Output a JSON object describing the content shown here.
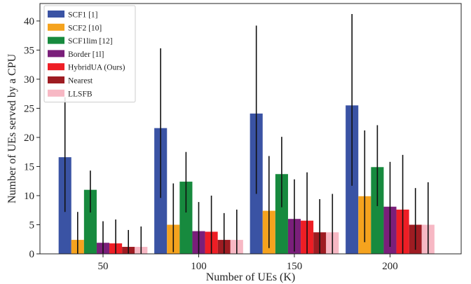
{
  "chart_data": {
    "type": "bar",
    "title": "",
    "xlabel": "Number of UEs (K)",
    "ylabel": "Number of UEs served by a CPU",
    "categories": [
      "50",
      "100",
      "150",
      "200"
    ],
    "ylim": [
      0,
      43
    ],
    "yticks": [
      0,
      5,
      10,
      15,
      20,
      25,
      30,
      35,
      40
    ],
    "grid": false,
    "legend_position": "top-left",
    "error_bars": true,
    "series": [
      {
        "name": "SCF1 [1]",
        "color": "#3a53a4",
        "values": [
          16.6,
          21.6,
          24.1,
          25.5
        ],
        "err_low": [
          7.2,
          9.6,
          10.3,
          11.7
        ],
        "err_high": [
          26.9,
          35.3,
          39.2,
          41.2
        ]
      },
      {
        "name": "SCF2 [10]",
        "color": "#f5a31e",
        "values": [
          2.4,
          5.0,
          7.4,
          9.9
        ],
        "err_low": [
          0.0,
          0.3,
          1.0,
          2.0
        ],
        "err_high": [
          7.2,
          12.1,
          16.8,
          21.2
        ]
      },
      {
        "name": "SCF1lim [12]",
        "color": "#178a3e",
        "values": [
          11.0,
          12.4,
          13.7,
          14.9
        ],
        "err_low": [
          7.1,
          7.1,
          8.0,
          8.2
        ],
        "err_high": [
          14.3,
          17.5,
          20.1,
          22.1
        ]
      },
      {
        "name": "Border [1l]",
        "color": "#7a1f7a",
        "values": [
          1.9,
          3.9,
          6.0,
          8.1
        ],
        "err_low": [
          0.0,
          0.0,
          0.4,
          1.2
        ],
        "err_high": [
          5.6,
          8.9,
          12.8,
          15.8
        ]
      },
      {
        "name": "HybridUA (Ours)",
        "color": "#ee1e25",
        "values": [
          1.8,
          3.8,
          5.7,
          7.6
        ],
        "err_low": [
          0.0,
          0.0,
          0.0,
          0.0
        ],
        "err_high": [
          5.9,
          10.0,
          14.0,
          17.0
        ]
      },
      {
        "name": "Nearest",
        "color": "#9e1c22",
        "values": [
          1.2,
          2.4,
          3.7,
          5.0
        ],
        "err_low": [
          0.0,
          0.0,
          0.0,
          0.7
        ],
        "err_high": [
          4.1,
          7.0,
          9.4,
          11.3
        ]
      },
      {
        "name": "LLSFB",
        "color": "#f7b8c4",
        "values": [
          1.2,
          2.4,
          3.7,
          5.0
        ],
        "err_low": [
          0.0,
          0.0,
          0.0,
          0.0
        ],
        "err_high": [
          4.7,
          7.6,
          10.3,
          12.3
        ]
      }
    ]
  }
}
